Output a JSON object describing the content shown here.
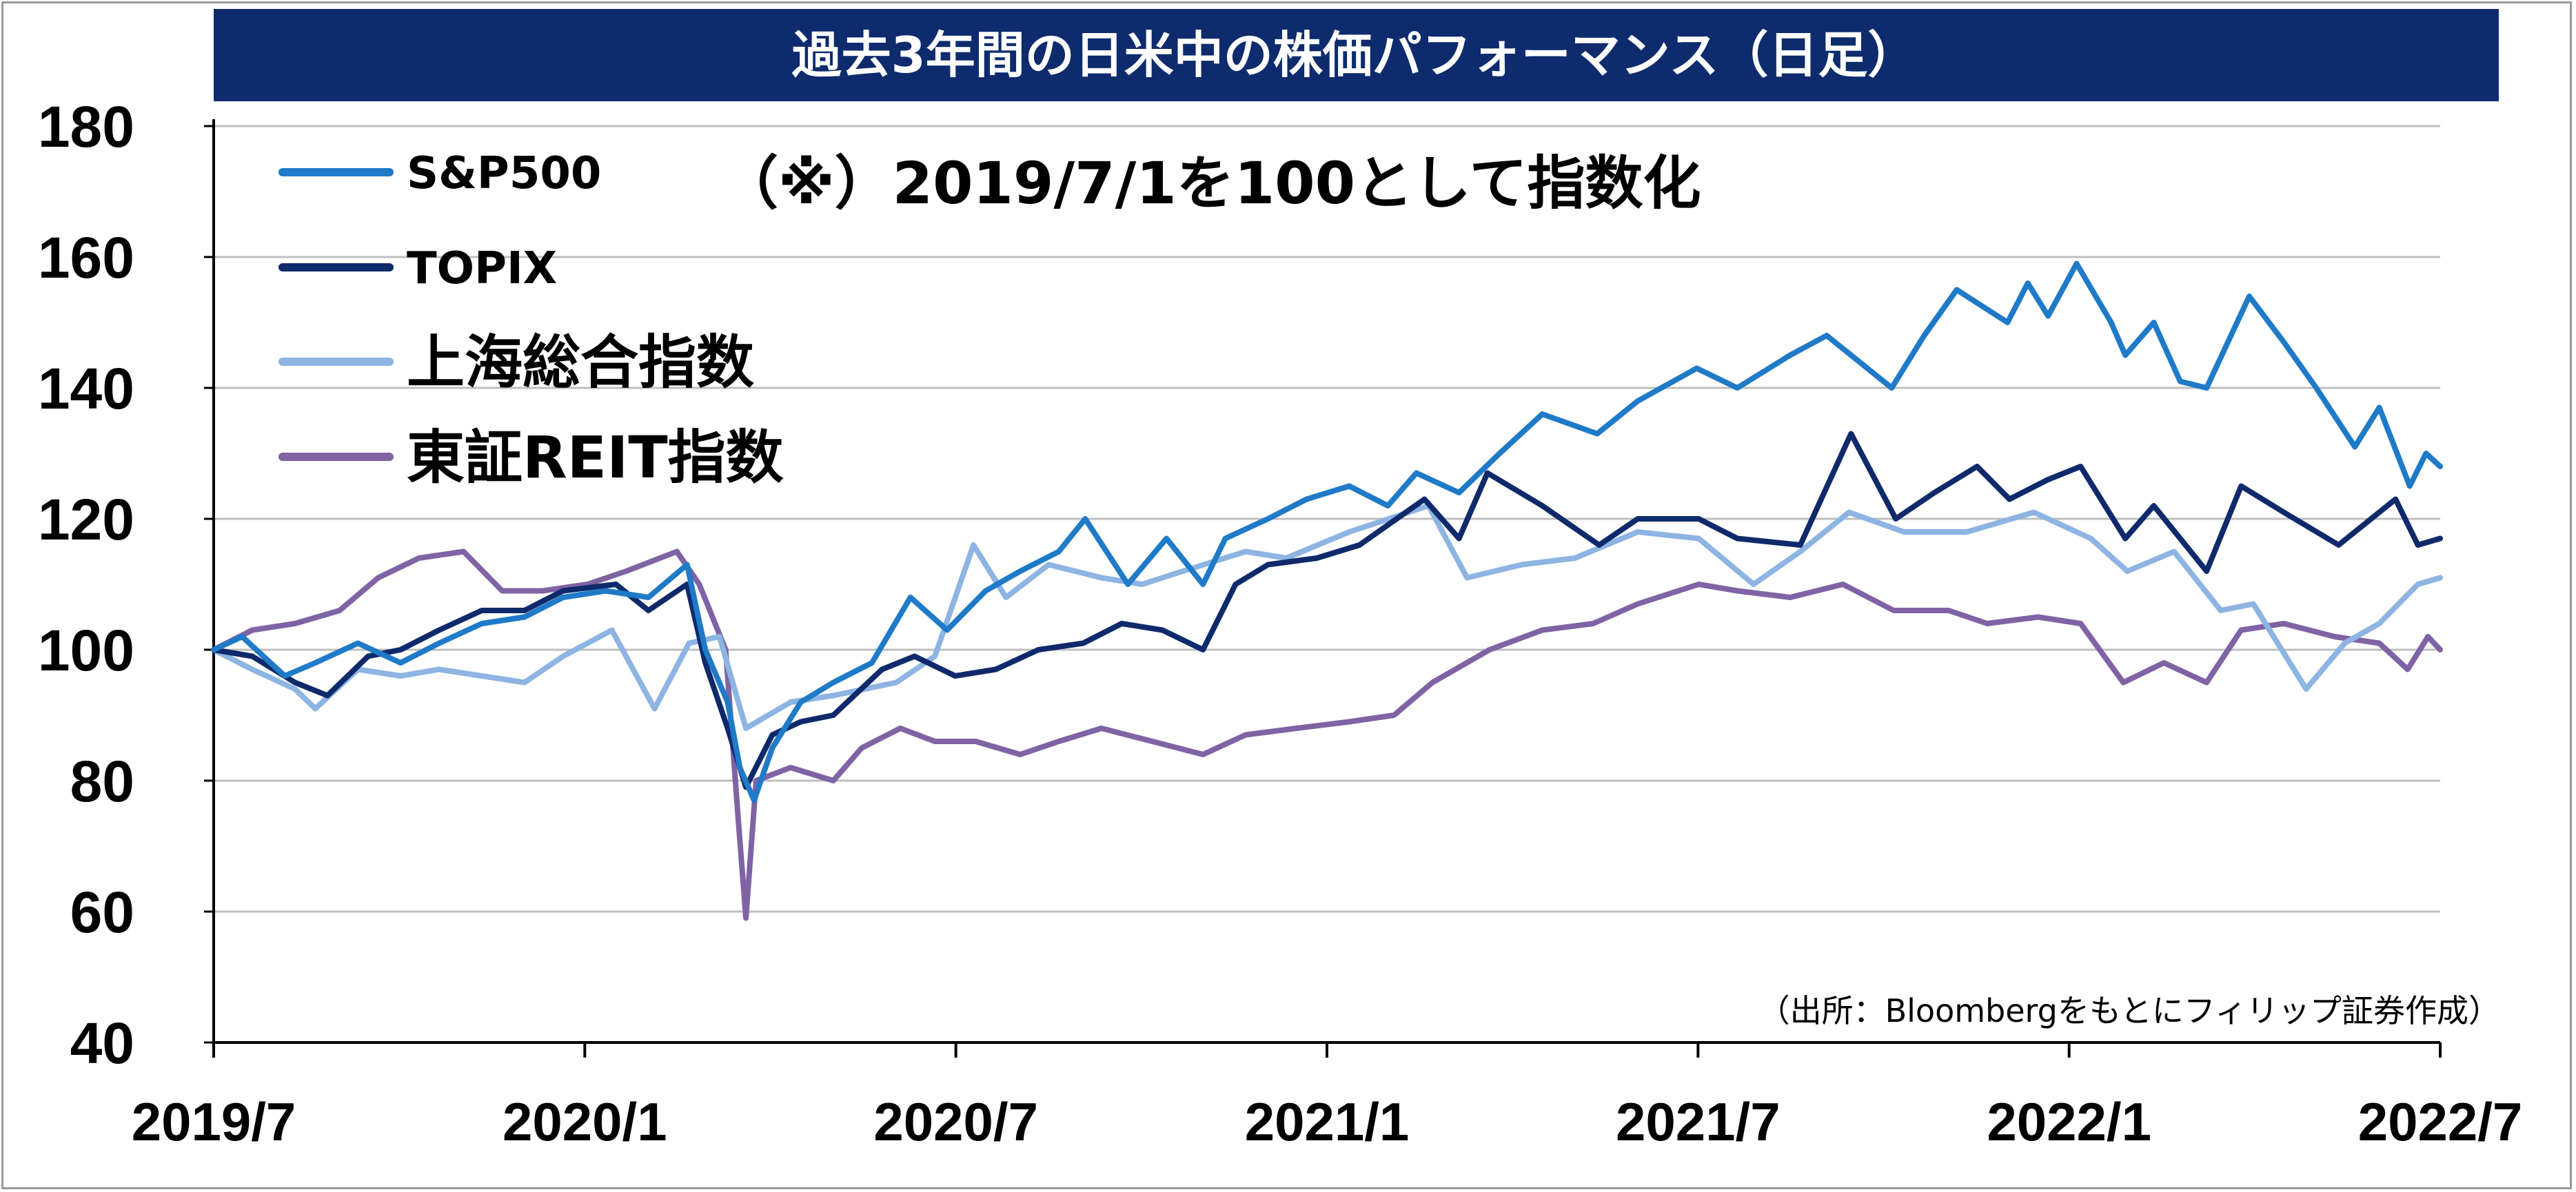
{
  "chart_data": {
    "type": "line",
    "title": "過去3年間の日米中の株価パフォーマンス（日足）",
    "annotation": "（※）2019/7/1を100として指数化",
    "source": "（出所：Bloombergをもとにフィリップ証券作成）",
    "xlabel": "",
    "ylabel": "",
    "ylim": [
      40,
      180
    ],
    "y_ticks": [
      40,
      60,
      80,
      100,
      120,
      140,
      160,
      180
    ],
    "x_ticks": [
      "2019/7",
      "2020/1",
      "2020/7",
      "2021/1",
      "2021/7",
      "2022/1",
      "2022/7"
    ],
    "xlim": [
      "2019-07-01",
      "2022-07-01"
    ],
    "grid": true,
    "legend": "top-left",
    "series": [
      {
        "name": "S&P500",
        "color": "#1f7ac8",
        "points": [
          [
            "2019-07-01",
            100
          ],
          [
            "2019-07-15",
            102
          ],
          [
            "2019-08-05",
            96
          ],
          [
            "2019-08-20",
            98
          ],
          [
            "2019-09-10",
            101
          ],
          [
            "2019-10-01",
            98
          ],
          [
            "2019-10-20",
            101
          ],
          [
            "2019-11-10",
            104
          ],
          [
            "2019-12-01",
            105
          ],
          [
            "2019-12-20",
            108
          ],
          [
            "2020-01-10",
            109
          ],
          [
            "2020-01-31",
            108
          ],
          [
            "2020-02-19",
            113
          ],
          [
            "2020-02-28",
            100
          ],
          [
            "2020-03-10",
            92
          ],
          [
            "2020-03-16",
            82
          ],
          [
            "2020-03-23",
            77
          ],
          [
            "2020-04-01",
            85
          ],
          [
            "2020-04-15",
            92
          ],
          [
            "2020-05-01",
            95
          ],
          [
            "2020-05-20",
            98
          ],
          [
            "2020-06-08",
            108
          ],
          [
            "2020-06-26",
            103
          ],
          [
            "2020-07-15",
            109
          ],
          [
            "2020-08-01",
            112
          ],
          [
            "2020-08-20",
            115
          ],
          [
            "2020-09-02",
            120
          ],
          [
            "2020-09-23",
            110
          ],
          [
            "2020-10-12",
            117
          ],
          [
            "2020-10-30",
            110
          ],
          [
            "2020-11-10",
            117
          ],
          [
            "2020-12-01",
            120
          ],
          [
            "2020-12-20",
            123
          ],
          [
            "2021-01-10",
            125
          ],
          [
            "2021-01-29",
            122
          ],
          [
            "2021-02-12",
            127
          ],
          [
            "2021-03-05",
            124
          ],
          [
            "2021-03-25",
            130
          ],
          [
            "2021-04-15",
            136
          ],
          [
            "2021-05-12",
            133
          ],
          [
            "2021-06-01",
            138
          ],
          [
            "2021-06-30",
            143
          ],
          [
            "2021-07-20",
            140
          ],
          [
            "2021-08-15",
            145
          ],
          [
            "2021-09-02",
            148
          ],
          [
            "2021-10-04",
            140
          ],
          [
            "2021-10-20",
            148
          ],
          [
            "2021-11-05",
            155
          ],
          [
            "2021-11-30",
            150
          ],
          [
            "2021-12-10",
            156
          ],
          [
            "2021-12-20",
            151
          ],
          [
            "2022-01-03",
            159
          ],
          [
            "2022-01-20",
            150
          ],
          [
            "2022-01-27",
            145
          ],
          [
            "2022-02-10",
            150
          ],
          [
            "2022-02-23",
            141
          ],
          [
            "2022-03-08",
            140
          ],
          [
            "2022-03-29",
            154
          ],
          [
            "2022-04-15",
            147
          ],
          [
            "2022-05-01",
            140
          ],
          [
            "2022-05-20",
            131
          ],
          [
            "2022-06-01",
            137
          ],
          [
            "2022-06-16",
            125
          ],
          [
            "2022-06-24",
            130
          ],
          [
            "2022-07-01",
            128
          ]
        ]
      },
      {
        "name": "TOPIX",
        "color": "#0f2a6b",
        "points": [
          [
            "2019-07-01",
            100
          ],
          [
            "2019-07-20",
            99
          ],
          [
            "2019-08-10",
            95
          ],
          [
            "2019-08-26",
            93
          ],
          [
            "2019-09-15",
            99
          ],
          [
            "2019-10-01",
            100
          ],
          [
            "2019-10-20",
            103
          ],
          [
            "2019-11-10",
            106
          ],
          [
            "2019-12-01",
            106
          ],
          [
            "2019-12-20",
            109
          ],
          [
            "2020-01-15",
            110
          ],
          [
            "2020-01-31",
            106
          ],
          [
            "2020-02-19",
            110
          ],
          [
            "2020-02-28",
            98
          ],
          [
            "2020-03-10",
            88
          ],
          [
            "2020-03-19",
            79
          ],
          [
            "2020-04-01",
            87
          ],
          [
            "2020-04-15",
            89
          ],
          [
            "2020-05-01",
            90
          ],
          [
            "2020-05-25",
            97
          ],
          [
            "2020-06-10",
            99
          ],
          [
            "2020-06-30",
            96
          ],
          [
            "2020-07-20",
            97
          ],
          [
            "2020-08-10",
            100
          ],
          [
            "2020-09-01",
            101
          ],
          [
            "2020-09-20",
            104
          ],
          [
            "2020-10-10",
            103
          ],
          [
            "2020-10-30",
            100
          ],
          [
            "2020-11-15",
            110
          ],
          [
            "2020-12-01",
            113
          ],
          [
            "2020-12-25",
            114
          ],
          [
            "2021-01-15",
            116
          ],
          [
            "2021-02-16",
            123
          ],
          [
            "2021-03-05",
            117
          ],
          [
            "2021-03-19",
            127
          ],
          [
            "2021-04-15",
            122
          ],
          [
            "2021-05-13",
            116
          ],
          [
            "2021-06-01",
            120
          ],
          [
            "2021-07-01",
            120
          ],
          [
            "2021-07-20",
            117
          ],
          [
            "2021-08-20",
            116
          ],
          [
            "2021-09-14",
            133
          ],
          [
            "2021-10-06",
            120
          ],
          [
            "2021-10-25",
            124
          ],
          [
            "2021-11-15",
            128
          ],
          [
            "2021-12-01",
            123
          ],
          [
            "2021-12-20",
            126
          ],
          [
            "2022-01-05",
            128
          ],
          [
            "2022-01-27",
            117
          ],
          [
            "2022-02-10",
            122
          ],
          [
            "2022-03-08",
            112
          ],
          [
            "2022-03-25",
            125
          ],
          [
            "2022-04-15",
            121
          ],
          [
            "2022-05-12",
            116
          ],
          [
            "2022-06-09",
            123
          ],
          [
            "2022-06-20",
            116
          ],
          [
            "2022-07-01",
            117
          ]
        ]
      },
      {
        "name": "上海総合指数",
        "color": "#8db4e2",
        "points": [
          [
            "2019-07-01",
            100
          ],
          [
            "2019-07-20",
            97
          ],
          [
            "2019-08-10",
            94
          ],
          [
            "2019-08-20",
            91
          ],
          [
            "2019-09-10",
            97
          ],
          [
            "2019-10-01",
            96
          ],
          [
            "2019-10-20",
            97
          ],
          [
            "2019-11-10",
            96
          ],
          [
            "2019-12-01",
            95
          ],
          [
            "2019-12-20",
            99
          ],
          [
            "2020-01-13",
            103
          ],
          [
            "2020-02-03",
            91
          ],
          [
            "2020-02-20",
            101
          ],
          [
            "2020-03-06",
            102
          ],
          [
            "2020-03-19",
            88
          ],
          [
            "2020-04-10",
            92
          ],
          [
            "2020-05-01",
            93
          ],
          [
            "2020-06-01",
            95
          ],
          [
            "2020-06-20",
            99
          ],
          [
            "2020-07-09",
            116
          ],
          [
            "2020-07-25",
            108
          ],
          [
            "2020-08-15",
            113
          ],
          [
            "2020-09-10",
            111
          ],
          [
            "2020-09-30",
            110
          ],
          [
            "2020-10-20",
            112
          ],
          [
            "2020-11-20",
            115
          ],
          [
            "2020-12-10",
            114
          ],
          [
            "2021-01-10",
            118
          ],
          [
            "2021-02-18",
            122
          ],
          [
            "2021-03-09",
            111
          ],
          [
            "2021-04-05",
            113
          ],
          [
            "2021-05-01",
            114
          ],
          [
            "2021-06-01",
            118
          ],
          [
            "2021-07-01",
            117
          ],
          [
            "2021-07-28",
            110
          ],
          [
            "2021-08-20",
            115
          ],
          [
            "2021-09-13",
            121
          ],
          [
            "2021-10-10",
            118
          ],
          [
            "2021-11-10",
            118
          ],
          [
            "2021-12-13",
            121
          ],
          [
            "2022-01-10",
            117
          ],
          [
            "2022-01-28",
            112
          ],
          [
            "2022-02-20",
            115
          ],
          [
            "2022-03-15",
            106
          ],
          [
            "2022-03-31",
            107
          ],
          [
            "2022-04-26",
            94
          ],
          [
            "2022-05-15",
            101
          ],
          [
            "2022-06-01",
            104
          ],
          [
            "2022-06-20",
            110
          ],
          [
            "2022-07-01",
            111
          ]
        ]
      },
      {
        "name": "東証REIT指数",
        "color": "#7f63a4",
        "points": [
          [
            "2019-07-01",
            100
          ],
          [
            "2019-07-20",
            103
          ],
          [
            "2019-08-10",
            104
          ],
          [
            "2019-09-01",
            106
          ],
          [
            "2019-09-20",
            111
          ],
          [
            "2019-10-10",
            114
          ],
          [
            "2019-11-01",
            115
          ],
          [
            "2019-11-20",
            109
          ],
          [
            "2019-12-10",
            109
          ],
          [
            "2020-01-01",
            110
          ],
          [
            "2020-01-20",
            112
          ],
          [
            "2020-02-14",
            115
          ],
          [
            "2020-02-25",
            110
          ],
          [
            "2020-03-09",
            100
          ],
          [
            "2020-03-15",
            75
          ],
          [
            "2020-03-19",
            59
          ],
          [
            "2020-03-24",
            80
          ],
          [
            "2020-04-10",
            82
          ],
          [
            "2020-05-01",
            80
          ],
          [
            "2020-05-15",
            85
          ],
          [
            "2020-06-03",
            88
          ],
          [
            "2020-06-20",
            86
          ],
          [
            "2020-07-10",
            86
          ],
          [
            "2020-08-01",
            84
          ],
          [
            "2020-08-20",
            86
          ],
          [
            "2020-09-10",
            88
          ],
          [
            "2020-10-05",
            86
          ],
          [
            "2020-10-30",
            84
          ],
          [
            "2020-11-20",
            87
          ],
          [
            "2020-12-15",
            88
          ],
          [
            "2021-01-10",
            89
          ],
          [
            "2021-02-01",
            90
          ],
          [
            "2021-02-20",
            95
          ],
          [
            "2021-03-20",
            100
          ],
          [
            "2021-04-15",
            103
          ],
          [
            "2021-05-10",
            104
          ],
          [
            "2021-06-01",
            107
          ],
          [
            "2021-07-01",
            110
          ],
          [
            "2021-07-20",
            109
          ],
          [
            "2021-08-15",
            108
          ],
          [
            "2021-09-10",
            110
          ],
          [
            "2021-10-05",
            106
          ],
          [
            "2021-11-01",
            106
          ],
          [
            "2021-11-20",
            104
          ],
          [
            "2021-12-15",
            105
          ],
          [
            "2022-01-05",
            104
          ],
          [
            "2022-01-26",
            95
          ],
          [
            "2022-02-15",
            98
          ],
          [
            "2022-03-08",
            95
          ],
          [
            "2022-03-25",
            103
          ],
          [
            "2022-04-15",
            104
          ],
          [
            "2022-05-10",
            102
          ],
          [
            "2022-06-01",
            101
          ],
          [
            "2022-06-15",
            97
          ],
          [
            "2022-06-25",
            102
          ],
          [
            "2022-07-01",
            100
          ]
        ]
      }
    ]
  }
}
